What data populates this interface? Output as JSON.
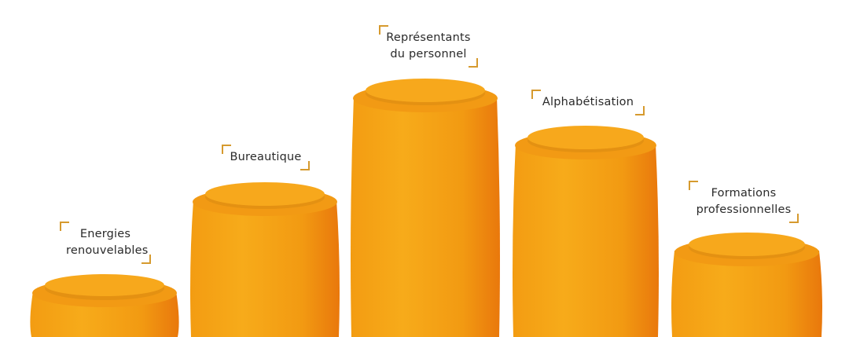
{
  "colors": {
    "pillar_light": "#f7ab1a",
    "pillar_mid": "#f29a12",
    "pillar_dark": "#ea7a0c",
    "lid": "#f7a81c",
    "bracket": "#d69a2e",
    "text": "#2a2a2a"
  },
  "pillars": [
    {
      "label_lines": [
        "Energies",
        "renouvelables"
      ]
    },
    {
      "label_lines": [
        "Bureautique"
      ]
    },
    {
      "label_lines": [
        "Représentants",
        "du personnel"
      ]
    },
    {
      "label_lines": [
        "Alphabétisation"
      ]
    },
    {
      "label_lines": [
        "Formations",
        "professionnelles"
      ]
    }
  ]
}
